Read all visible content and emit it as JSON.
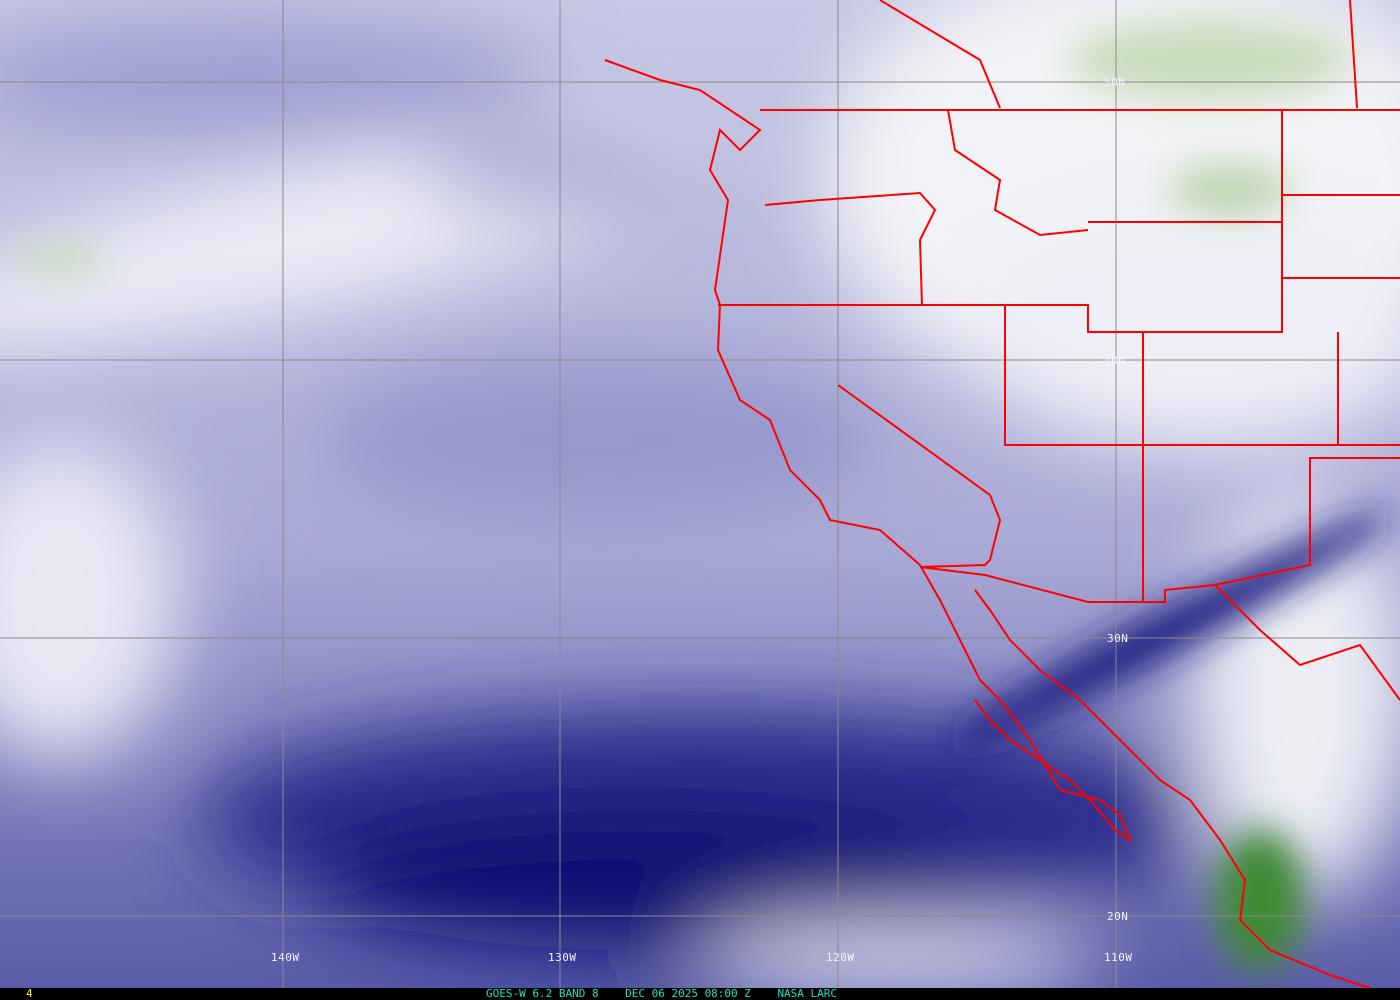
{
  "image": {
    "product": "GOES-W 6.2 BAND 8",
    "datetime": "DEC 06 2025 08:00 Z",
    "source": "NASA LARC",
    "frame_number": "4",
    "longitude_labels": [
      "140W",
      "130W",
      "120W",
      "110W"
    ],
    "latitude_labels": [
      "50N",
      "40N",
      "30N",
      "20N"
    ],
    "colors": {
      "boundaries": "#ff0000",
      "gridlines": "#888888",
      "dry_air": "#0a0a6e",
      "moist_air": "#f2f2f8",
      "high_cloud": "#3a8a30",
      "caption_text": "#22e0b8",
      "frame_text": "#ffff40"
    }
  }
}
